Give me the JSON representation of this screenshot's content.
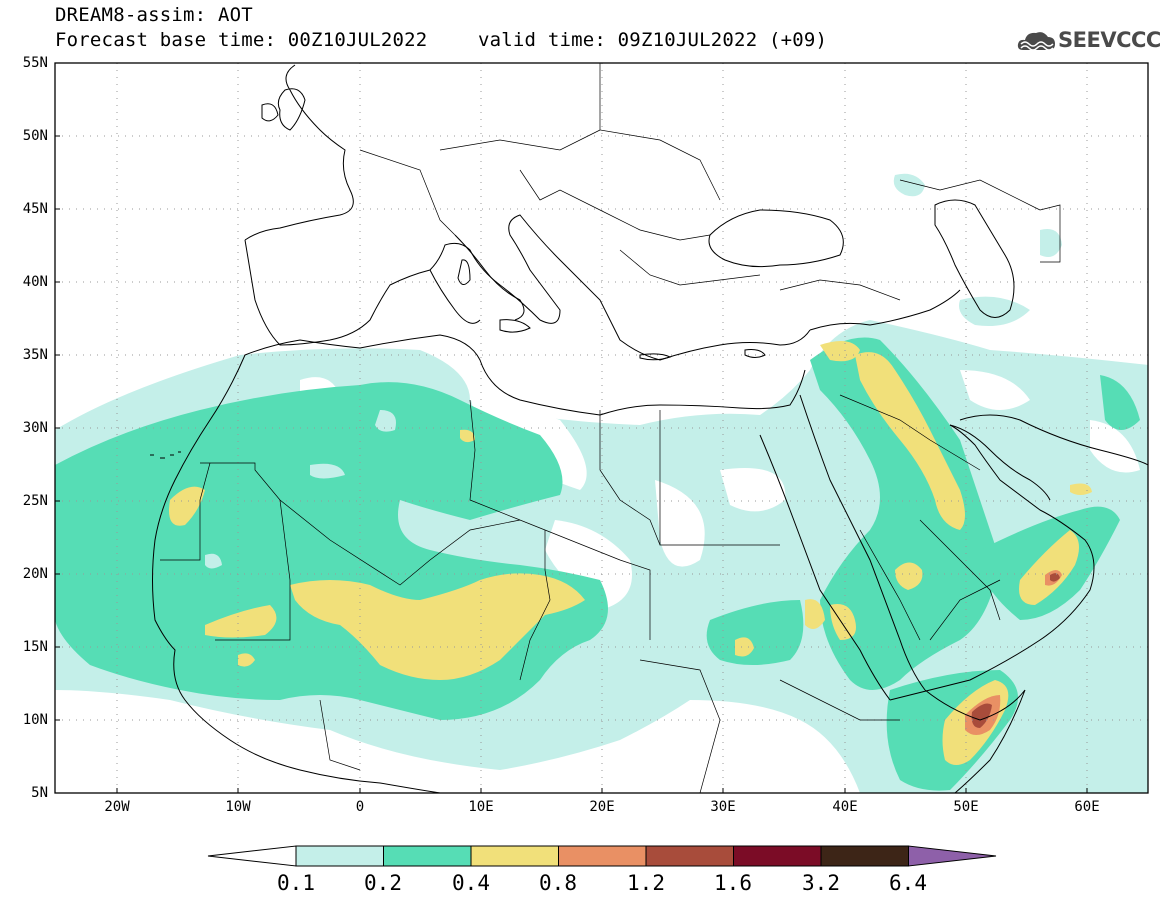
{
  "header": {
    "title": "DREAM8-assim: AOT",
    "base_time": "Forecast base time: 00Z10JUL2022",
    "valid_time": "valid time: 09Z10JUL2022 (+09)",
    "logo_text": "SEEVCCC"
  },
  "map": {
    "lon_range": [
      -25,
      65
    ],
    "lat_range": [
      5,
      55
    ],
    "lat_labels": [
      "55N",
      "50N",
      "45N",
      "40N",
      "35N",
      "30N",
      "25N",
      "20N",
      "15N",
      "10N",
      "5N"
    ],
    "lon_labels": [
      "20W",
      "10W",
      "0",
      "10E",
      "20E",
      "30E",
      "40E",
      "50E",
      "60E"
    ],
    "gridlines": "dotted"
  },
  "colorbar": {
    "levels": [
      "0.1",
      "0.2",
      "0.4",
      "0.8",
      "1.2",
      "1.6",
      "3.2",
      "6.4"
    ],
    "colors": [
      "#c4efe9",
      "#56ddb5",
      "#f1e07a",
      "#e99064",
      "#a84c3b",
      "#7b0c26",
      "#3d2517",
      "#8e60a9"
    ],
    "extend_low": "#ffffff"
  }
}
